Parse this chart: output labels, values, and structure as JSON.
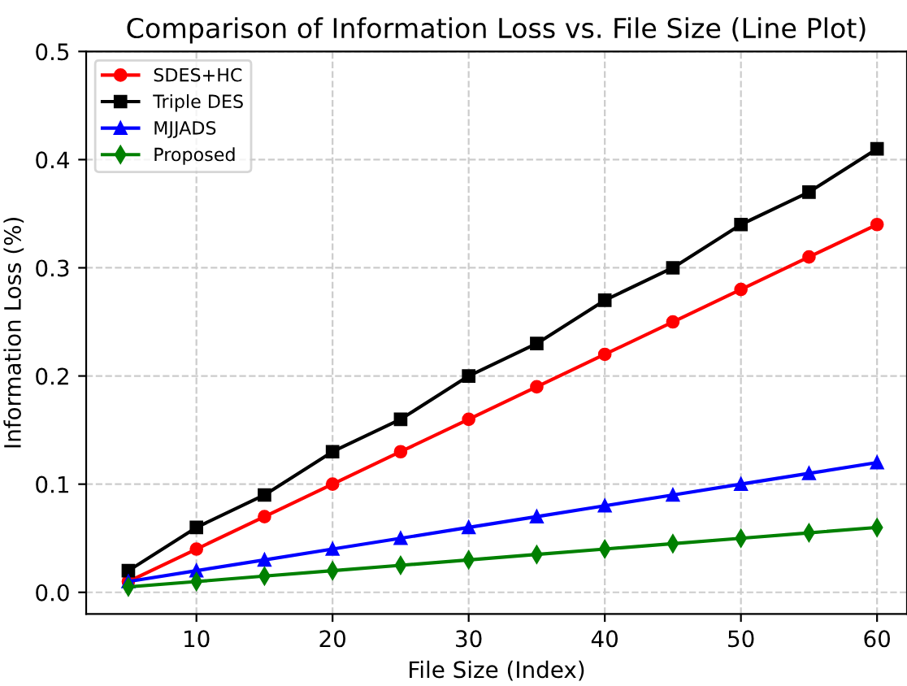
{
  "chart_data": {
    "type": "line",
    "title": "Comparison of Information Loss vs. File Size (Line Plot)",
    "xlabel": "File Size (Index)",
    "ylabel": "Information Loss (%)",
    "x": [
      5,
      10,
      15,
      20,
      25,
      30,
      35,
      40,
      45,
      50,
      55,
      60
    ],
    "series": [
      {
        "name": "SDES+HC",
        "color": "#ff0000",
        "marker": "circle",
        "values": [
          0.01,
          0.04,
          0.07,
          0.1,
          0.13,
          0.16,
          0.19,
          0.22,
          0.25,
          0.28,
          0.31,
          0.34
        ]
      },
      {
        "name": "Triple DES",
        "color": "#000000",
        "marker": "square",
        "values": [
          0.02,
          0.06,
          0.09,
          0.13,
          0.16,
          0.2,
          0.23,
          0.27,
          0.3,
          0.34,
          0.37,
          0.41
        ]
      },
      {
        "name": "MJJADS",
        "color": "#0000ff",
        "marker": "triangle",
        "values": [
          0.01,
          0.02,
          0.03,
          0.04,
          0.05,
          0.06,
          0.07,
          0.08,
          0.09,
          0.1,
          0.11,
          0.12
        ]
      },
      {
        "name": "Proposed",
        "color": "#008000",
        "marker": "diamond",
        "values": [
          0.005,
          0.01,
          0.015,
          0.02,
          0.025,
          0.03,
          0.035,
          0.04,
          0.045,
          0.05,
          0.055,
          0.06
        ]
      }
    ],
    "xlim": [
      1.9,
      62.2
    ],
    "xticks": [
      10,
      20,
      30,
      40,
      50,
      60
    ],
    "ylim": [
      -0.02,
      0.5
    ],
    "yticks": [
      {
        "value": 0.0,
        "label": "0.0"
      },
      0.1,
      0.2,
      0.3,
      0.4,
      0.5
    ],
    "grid": true,
    "legend": "top left",
    "line_style": "solid"
  }
}
